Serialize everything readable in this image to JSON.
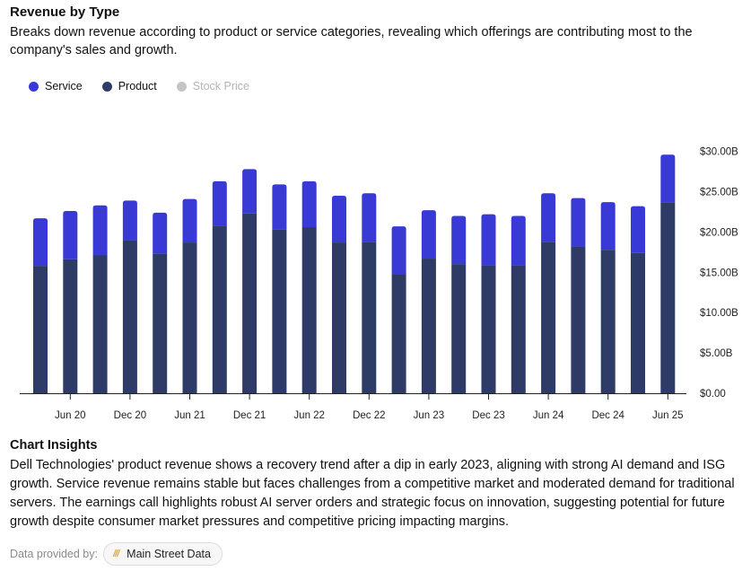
{
  "header": {
    "title": "Revenue by Type",
    "subtitle": "Breaks down revenue according to product or service categories, revealing which offerings are contributing most to the company's sales and growth."
  },
  "legend": [
    {
      "label": "Service",
      "color": "#3939d6",
      "active": true
    },
    {
      "label": "Product",
      "color": "#2f3b67",
      "active": true
    },
    {
      "label": "Stock Price",
      "color": "#c4c4c4",
      "active": false
    }
  ],
  "chart_data": {
    "type": "bar",
    "stacked": true,
    "title": "Revenue by Type",
    "xlabel": "",
    "ylabel": "",
    "ylim": [
      0,
      30
    ],
    "y_unit": "USD billions",
    "y_ticks": [
      0,
      5,
      10,
      15,
      20,
      25,
      30
    ],
    "y_tick_labels": [
      "$0.00",
      "$5.00B",
      "$10.00B",
      "$15.00B",
      "$20.00B",
      "$25.00B",
      "$30.00B"
    ],
    "y_axis_position": "right",
    "grid": false,
    "legend_position": "top-left",
    "categories": [
      "Mar 20",
      "Jun 20",
      "Sep 20",
      "Dec 20",
      "Mar 21",
      "Jun 21",
      "Sep 21",
      "Dec 21",
      "Mar 22",
      "Jun 22",
      "Sep 22",
      "Dec 22",
      "Mar 23",
      "Jun 23",
      "Sep 23",
      "Dec 23",
      "Mar 24",
      "Jun 24",
      "Sep 24",
      "Dec 24",
      "Mar 25",
      "Jun 25"
    ],
    "x_tick_labels": [
      "Jun 20",
      "Dec 20",
      "Jun 21",
      "Dec 21",
      "Jun 22",
      "Dec 22",
      "Jun 23",
      "Dec 23",
      "Jun 24",
      "Dec 24",
      "Jun 25"
    ],
    "series": [
      {
        "name": "Product",
        "color": "#2f3b67",
        "values": [
          15.8,
          16.6,
          17.1,
          19.0,
          17.3,
          18.7,
          20.8,
          22.3,
          20.3,
          20.6,
          18.7,
          18.8,
          14.8,
          16.7,
          16.0,
          15.9,
          15.9,
          18.8,
          18.2,
          17.8,
          17.4,
          23.7
        ]
      },
      {
        "name": "Service",
        "color": "#3939d6",
        "values": [
          5.9,
          6.0,
          6.2,
          4.9,
          5.1,
          5.4,
          5.5,
          5.5,
          5.6,
          5.7,
          5.8,
          6.0,
          5.9,
          6.0,
          6.0,
          6.3,
          6.1,
          6.0,
          6.0,
          5.9,
          5.8,
          5.9
        ]
      }
    ]
  },
  "insights": {
    "title": "Chart Insights",
    "text": "Dell Technologies' product revenue shows a recovery trend after a dip in early 2023, aligning with strong AI demand and ISG growth. Service revenue remains stable but faces challenges from a competitive market and moderated demand for traditional servers. The earnings call highlights robust AI server orders and strategic focus on innovation, suggesting potential for future growth despite consumer market pressures and competitive pricing impacting margins."
  },
  "footer": {
    "provided_label": "Data provided by:",
    "provider_icon": "///",
    "provider_name": "Main Street Data"
  }
}
